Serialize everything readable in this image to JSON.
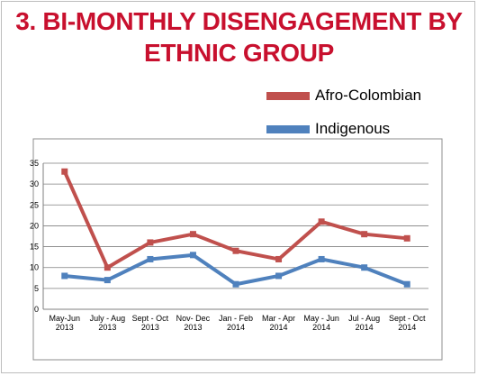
{
  "slide": {
    "title_line1": "3. BI-MONTHLY DISENGAGEMENT BY",
    "title_line2": "ETHNIC GROUP"
  },
  "colors": {
    "title": "#c8102e",
    "afro_colombian": "#c0504d",
    "indigenous": "#4f81bd",
    "gridline": "#7f7f7f"
  },
  "chart_data": {
    "type": "line",
    "title": "",
    "xlabel": "",
    "ylabel": "",
    "categories": [
      [
        "May-Jun",
        "2013"
      ],
      [
        "July - Aug",
        "2013"
      ],
      [
        "Sept - Oct",
        "2013"
      ],
      [
        "Nov- Dec",
        "2013"
      ],
      [
        "Jan - Feb",
        "2014"
      ],
      [
        "Mar - Apr",
        "2014"
      ],
      [
        "May - Jun",
        "2014"
      ],
      [
        "Jul - Aug",
        "2014"
      ],
      [
        "Sept - Oct",
        "2014"
      ]
    ],
    "series": [
      {
        "name": "Afro-Colombian",
        "color": "#c0504d",
        "values": [
          33,
          10,
          16,
          18,
          14,
          12,
          21,
          18,
          17
        ]
      },
      {
        "name": "Indigenous",
        "color": "#4f81bd",
        "values": [
          8,
          7,
          12,
          13,
          6,
          8,
          12,
          10,
          6
        ]
      }
    ],
    "ylim": [
      0,
      35
    ],
    "yticks": [
      0,
      5,
      10,
      15,
      20,
      25,
      30,
      35
    ],
    "grid": true,
    "legend_position": "top-right"
  }
}
